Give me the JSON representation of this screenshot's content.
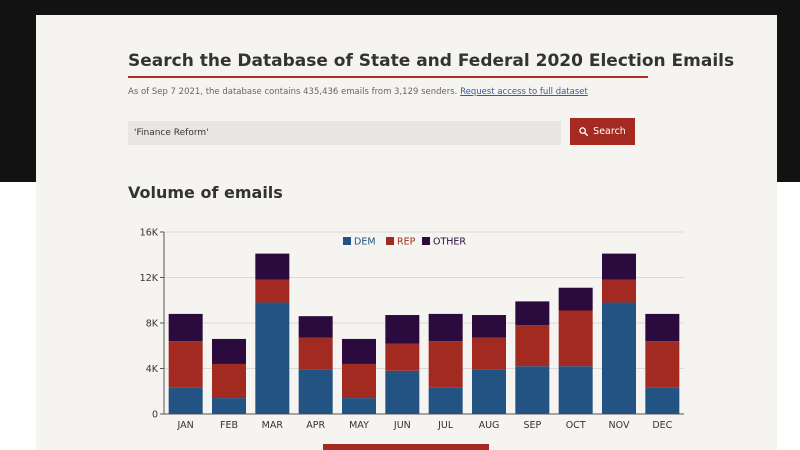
{
  "header": {
    "title": "Search the Database of State and Federal 2020 Election Emails",
    "stats_text": "As of Sep 7 2021, the database contains 435,436 emails from 3,129 senders.",
    "access_link": "Request access to full dataset"
  },
  "search": {
    "value": "'Finance Reform'",
    "button_label": "Search"
  },
  "section": {
    "title": "Volume of emails"
  },
  "colors": {
    "dem": "#235382",
    "rep": "#a32a21",
    "other": "#2b0a3d",
    "accent": "#a52a21"
  },
  "chart_data": {
    "type": "bar",
    "stacked": true,
    "title": "",
    "xlabel": "",
    "ylabel": "",
    "ylim": [
      0,
      16000
    ],
    "yticks": [
      0,
      4000,
      8000,
      12000,
      16000
    ],
    "ytick_labels": [
      "0",
      "4K",
      "8K",
      "12K",
      "16K"
    ],
    "grid": true,
    "legend_position": "top-center",
    "categories": [
      "JAN",
      "FEB",
      "MAR",
      "APR",
      "MAY",
      "JUN",
      "JUL",
      "AUG",
      "SEP",
      "OCT",
      "NOV",
      "DEC"
    ],
    "series": [
      {
        "name": "DEM",
        "values": [
          2300,
          1400,
          9800,
          3900,
          1400,
          3800,
          2300,
          3900,
          4200,
          4200,
          9800,
          2300
        ]
      },
      {
        "name": "REP",
        "values": [
          4100,
          3000,
          2000,
          2800,
          3000,
          2400,
          4100,
          2800,
          3600,
          4900,
          2000,
          4100
        ]
      },
      {
        "name": "OTHER",
        "values": [
          2400,
          2200,
          2300,
          1900,
          2200,
          2500,
          2400,
          2000,
          2100,
          2000,
          2300,
          2400
        ]
      }
    ]
  }
}
